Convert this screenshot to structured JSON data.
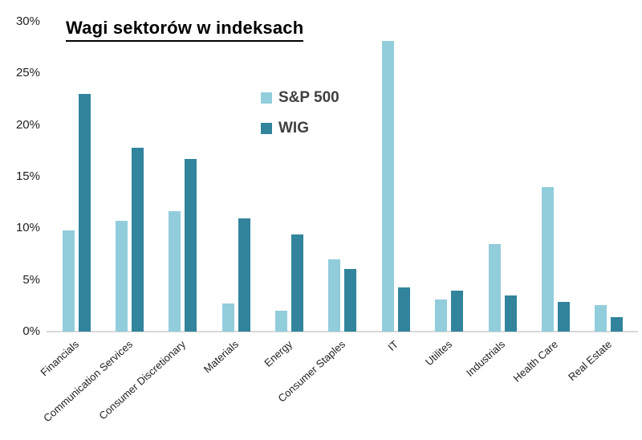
{
  "title": "Wagi sektorów w indeksach",
  "legend": [
    {
      "label": "S&P 500",
      "color": "#92CDDC"
    },
    {
      "label": "WIG",
      "color": "#31849B"
    }
  ],
  "colors": {
    "axis_line": "#d9d9d9",
    "tick_text": "#1f1f1f",
    "legend_text": "#404040",
    "title_text": "#000000"
  },
  "chart_data": {
    "type": "bar",
    "title": "Wagi sektorów w indeksach",
    "categories": [
      "Financials",
      "Communication Services",
      "Consumer Discretionary",
      "Materials",
      "Energy",
      "Consumer Staples",
      "IT",
      "Utilites",
      "Industrials",
      "Health Care",
      "Real Estate"
    ],
    "series": [
      {
        "name": "S&P 500",
        "color": "#92CDDC",
        "values": [
          9.8,
          10.7,
          11.7,
          2.7,
          2.0,
          7.0,
          28.1,
          3.1,
          8.5,
          14.0,
          2.6
        ]
      },
      {
        "name": "WIG",
        "color": "#31849B",
        "values": [
          23.0,
          17.8,
          16.7,
          11.0,
          9.4,
          6.1,
          4.3,
          4.0,
          3.5,
          2.9,
          1.4
        ]
      }
    ],
    "xlabel": "",
    "ylabel": "",
    "ylim": [
      0,
      30
    ],
    "ytick_step": 5,
    "yticks": [
      "0%",
      "5%",
      "10%",
      "15%",
      "20%",
      "25%",
      "30%"
    ],
    "grid": false,
    "legend_position": "upper-center",
    "unit": "%"
  }
}
